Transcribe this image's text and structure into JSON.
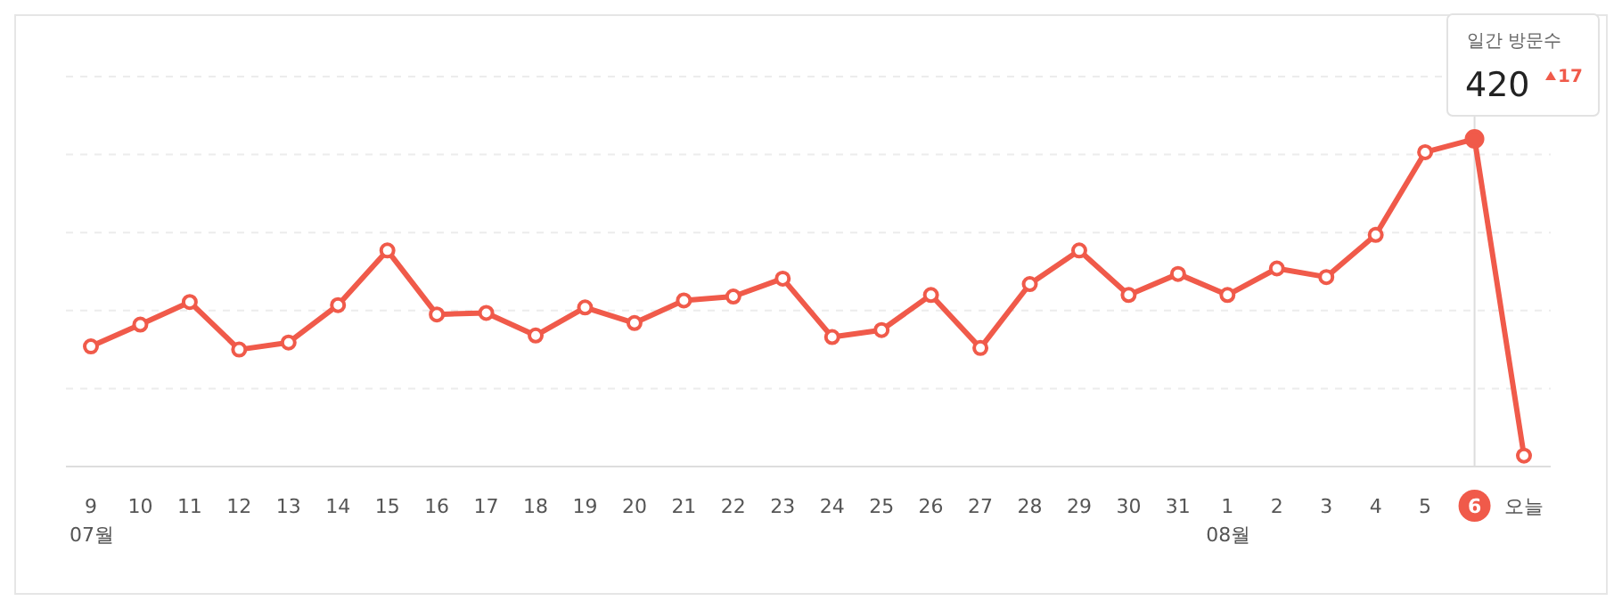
{
  "chart_data": {
    "type": "line",
    "categories": [
      "9",
      "10",
      "11",
      "12",
      "13",
      "14",
      "15",
      "16",
      "17",
      "18",
      "19",
      "20",
      "21",
      "22",
      "23",
      "24",
      "25",
      "26",
      "27",
      "28",
      "29",
      "30",
      "31",
      "1",
      "2",
      "3",
      "4",
      "5",
      "6",
      "오늘"
    ],
    "series": [
      {
        "color": "#f05a4a",
        "values": [
          154,
          182,
          211,
          150,
          159,
          207,
          277,
          195,
          197,
          168,
          204,
          184,
          213,
          218,
          241,
          166,
          175,
          220,
          152,
          234,
          277,
          220,
          247,
          220,
          254,
          243,
          297,
          403,
          420,
          14
        ],
        "value_labels": [
          null,
          null,
          null,
          null,
          null,
          null,
          null,
          null,
          null,
          null,
          null,
          null,
          null,
          null,
          null,
          null,
          null,
          null,
          null,
          null,
          null,
          null,
          null,
          null,
          null,
          null,
          null,
          null,
          "420",
          null
        ]
      }
    ],
    "ylim": [
      0,
      500
    ],
    "yticks": [
      0,
      {
        "value": 100,
        "label": null
      },
      {
        "value": 200,
        "label": null
      },
      {
        "value": 300,
        "label": null
      },
      {
        "value": 400,
        "label": null
      },
      {
        "value": 500,
        "label": null
      }
    ],
    "tick_labels": "x",
    "grid": "y",
    "marker": "circle",
    "line_style": "solid",
    "ref_lines": [
      {
        "axis": "x",
        "value": "6",
        "color": "#dddddd"
      }
    ],
    "annotations": [
      "일간 방문수",
      "17",
      "07월",
      "08월"
    ]
  }
}
